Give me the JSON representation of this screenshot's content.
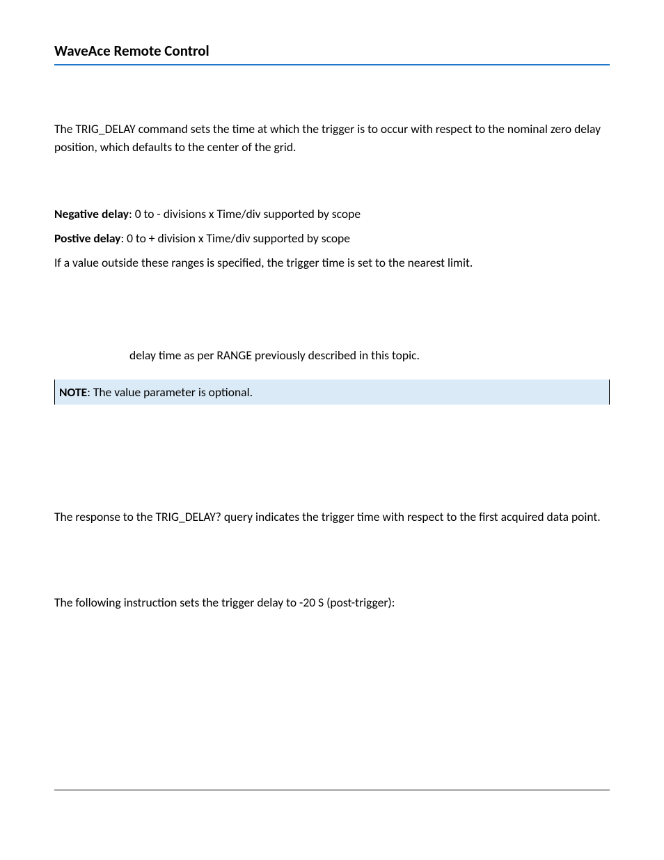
{
  "header": {
    "title": "WaveAce Remote Control",
    "rule_color": "#1f77c9"
  },
  "intro": {
    "paragraph": "The TRIG_DELAY command sets the time at which the trigger is to occur with respect to the nominal zero delay position, which defaults to the center of the grid."
  },
  "range": {
    "negative_label": "Negative delay",
    "negative_text": ": 0 to - divisions x Time/div supported by scope",
    "positive_label": "Postive delay",
    "positive_text": ": 0 to + division x Time/div supported by scope",
    "outside_text": "If a value outside these ranges is specified, the trigger time is set to the nearest limit."
  },
  "indent": {
    "text": "delay time as per RANGE previously described in this topic."
  },
  "note": {
    "label": "NOTE",
    "text": ": The value parameter is optional.",
    "background": "#dbeaf7"
  },
  "query": {
    "paragraph": "The response to the TRIG_DELAY? query indicates the trigger time with respect to the first acquired data point."
  },
  "example": {
    "paragraph": "The following instruction sets the trigger delay to -20 S (post-trigger):"
  }
}
